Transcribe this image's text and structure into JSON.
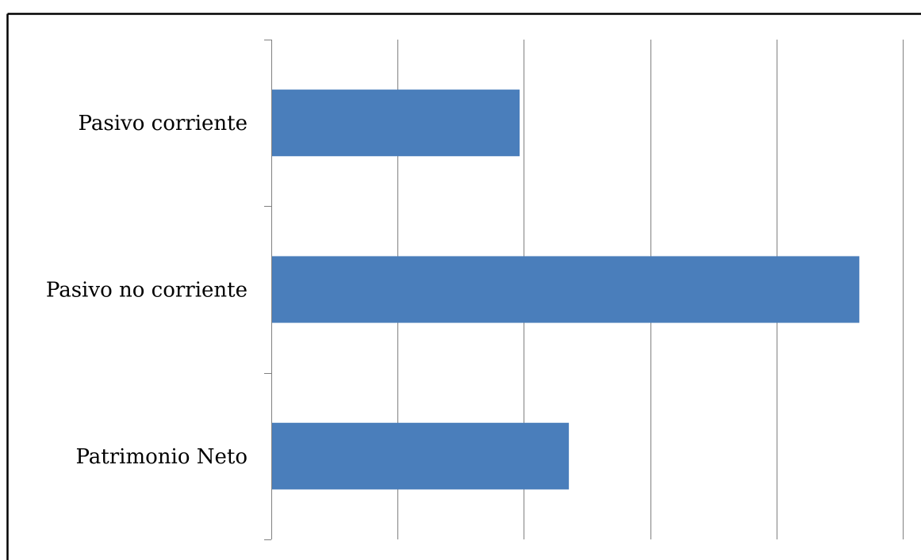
{
  "chart_data": {
    "type": "bar",
    "orientation": "horizontal",
    "categories": [
      "Pasivo corriente",
      "Pasivo no corriente",
      "Patrimonio Neto"
    ],
    "values": [
      1.96,
      4.65,
      2.35
    ],
    "title": "",
    "xlabel": "",
    "ylabel": "",
    "xlim": [
      0,
      5
    ],
    "x_tick_labels_shown": false,
    "grid": "vertical",
    "legend": "none",
    "bar_color": "#4a7ebb",
    "gridline_color": "#808080",
    "frame_color": "#000000"
  }
}
